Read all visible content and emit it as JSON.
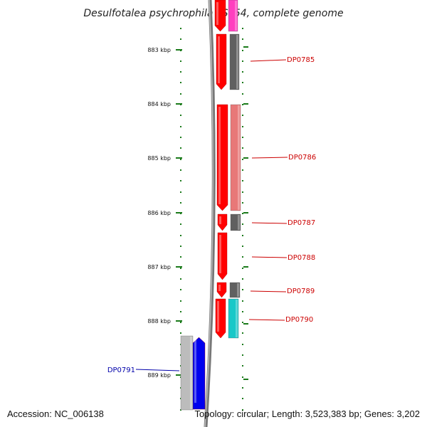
{
  "title": "Desulfotalea psychrophila LSv54, complete genome",
  "footer": {
    "accession": "Accession: NC_006138",
    "topology": "Topology: circular; Length: 3,523,383 bp; Genes: 3,202"
  },
  "colors": {
    "tick_green": "#1a7a1a",
    "backbone_gray": "#777777",
    "forward_red": "#ff0000",
    "pink": "#ff3fbf",
    "dark_gray": "#606060",
    "light_red": "#e87878",
    "cyan": "#19c8c8",
    "blue": "#0000ee",
    "light_gray": "#bcbcbc",
    "label_red": "#cc0000",
    "label_blue": "#0000aa"
  },
  "scale": {
    "unit": "kbp",
    "ticks": [
      "883 kbp",
      "884 kbp",
      "885 kbp",
      "886 kbp",
      "887 kbp",
      "888 kbp",
      "889 kbp"
    ]
  },
  "gene_labels": [
    {
      "name": "DP0785",
      "color": "label_red"
    },
    {
      "name": "DP0786",
      "color": "label_red"
    },
    {
      "name": "DP0787",
      "color": "label_red"
    },
    {
      "name": "DP0788",
      "color": "label_red"
    },
    {
      "name": "DP0789",
      "color": "label_red"
    },
    {
      "name": "DP0790",
      "color": "label_red"
    },
    {
      "name": "DP0791",
      "color": "label_blue"
    }
  ]
}
